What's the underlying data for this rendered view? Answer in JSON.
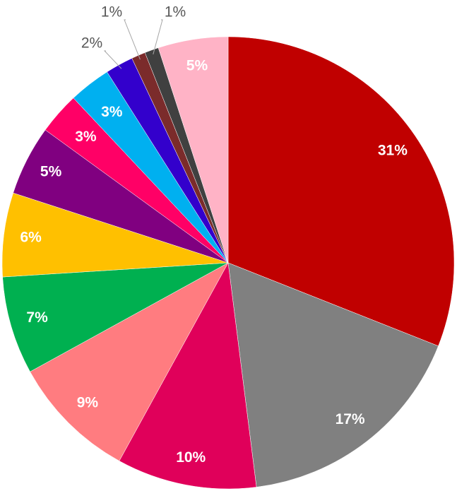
{
  "chart_data": {
    "type": "pie",
    "values": [
      31,
      17,
      10,
      9,
      7,
      6,
      5,
      3,
      3,
      2,
      1,
      1,
      5
    ],
    "value_labels": [
      "31%",
      "17%",
      "10%",
      "9%",
      "7%",
      "6%",
      "5%",
      "3%",
      "3%",
      "2%",
      "1%",
      "1%",
      "5%"
    ],
    "colors": [
      "#c00000",
      "#808080",
      "#e0005a",
      "#ff7c80",
      "#00b050",
      "#ffc000",
      "#800080",
      "#ff0066",
      "#00b0f0",
      "#3300cc",
      "#7b2b2b",
      "#404040",
      "#ffb3c6"
    ]
  }
}
